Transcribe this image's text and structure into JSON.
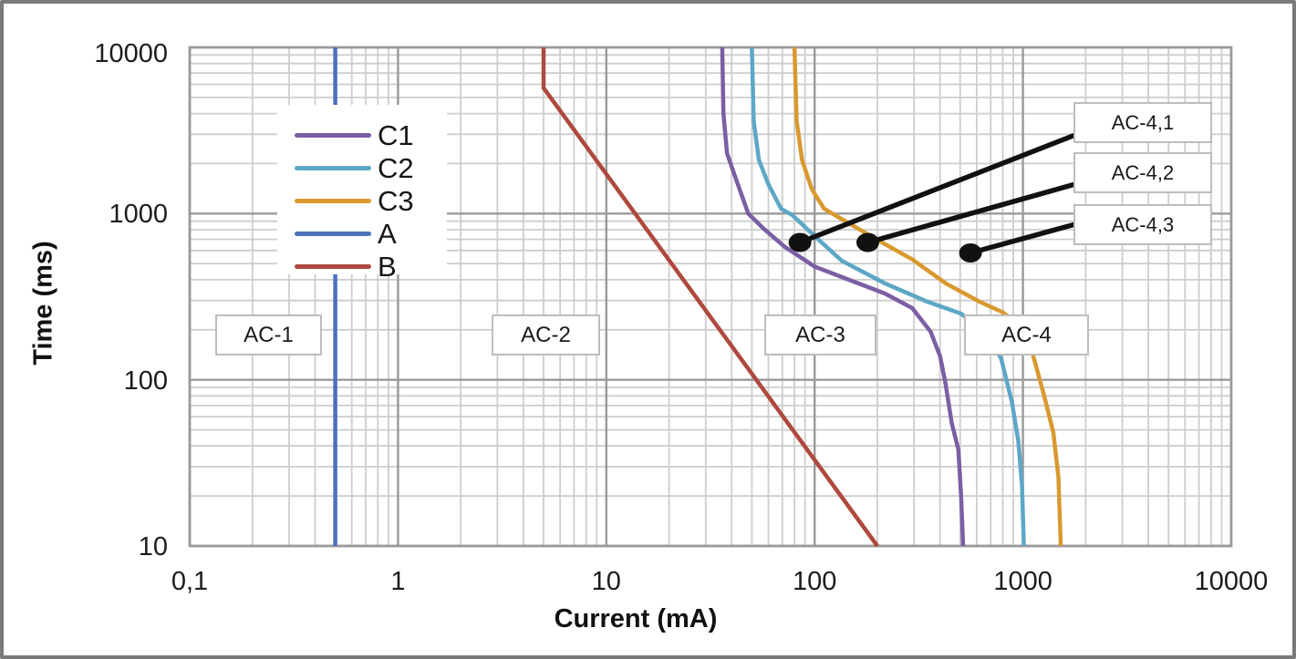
{
  "figure_type": "time-current zones log-log chart",
  "axes": {
    "x_title": "Current (mA)",
    "y_title": "Time (ms)",
    "x_tick_labels": [
      "0,1",
      "1",
      "10",
      "100",
      "1000",
      "10000"
    ],
    "x_tick_values": [
      0.1,
      1,
      10,
      100,
      1000,
      10000
    ],
    "y_tick_labels": [
      "10000",
      "1000",
      "100",
      "10"
    ],
    "y_tick_values": [
      10000,
      1000,
      100,
      10
    ]
  },
  "legend": {
    "items": [
      {
        "label": "C1",
        "color": "#7b5ea3"
      },
      {
        "label": "C2",
        "color": "#5da7c6"
      },
      {
        "label": "C3",
        "color": "#d9992f"
      },
      {
        "label": "A",
        "color": "#4c72b8"
      },
      {
        "label": "B",
        "color": "#af493d"
      }
    ]
  },
  "colors": {
    "grid_minor": "#cdcdcd",
    "grid_major": "#9a9a9a",
    "plot_border": "#9a9a9a",
    "marker": "#111111",
    "leader_line": "#111111",
    "box_border": "#bdbdbd"
  },
  "chart_data": {
    "type": "line",
    "title": "",
    "xlabel": "Current (mA)",
    "ylabel": "Time (ms)",
    "x_scale": "log",
    "y_scale": "log",
    "xlim": [
      0.1,
      10000
    ],
    "ylim": [
      10,
      10000
    ],
    "grid": true,
    "legend_position": "upper-left-inside",
    "series": [
      {
        "name": "C1",
        "color": "#7b5ea3",
        "points": [
          [
            36,
            10000
          ],
          [
            36.5,
            4000
          ],
          [
            38,
            2300
          ],
          [
            42,
            1600
          ],
          [
            48,
            1000
          ],
          [
            57,
            810
          ],
          [
            72,
            630
          ],
          [
            100,
            480
          ],
          [
            146,
            400
          ],
          [
            218,
            330
          ],
          [
            294,
            270
          ],
          [
            360,
            195
          ],
          [
            400,
            139
          ],
          [
            425,
            95
          ],
          [
            455,
            55
          ],
          [
            490,
            38
          ],
          [
            505,
            20
          ],
          [
            516,
            10
          ]
        ]
      },
      {
        "name": "C2",
        "color": "#5da7c6",
        "points": [
          [
            50,
            10000
          ],
          [
            51,
            3600
          ],
          [
            54,
            2100
          ],
          [
            60,
            1500
          ],
          [
            69,
            1070
          ],
          [
            78,
            980
          ],
          [
            108,
            670
          ],
          [
            135,
            520
          ],
          [
            218,
            380
          ],
          [
            348,
            295
          ],
          [
            505,
            250
          ],
          [
            650,
            195
          ],
          [
            785,
            135
          ],
          [
            886,
            73
          ],
          [
            950,
            43
          ],
          [
            990,
            23
          ],
          [
            1010,
            10
          ]
        ]
      },
      {
        "name": "C3",
        "color": "#d9992f",
        "points": [
          [
            80,
            10000
          ],
          [
            82,
            3600
          ],
          [
            87,
            2100
          ],
          [
            97,
            1400
          ],
          [
            111,
            1070
          ],
          [
            125,
            980
          ],
          [
            198,
            700
          ],
          [
            294,
            530
          ],
          [
            427,
            380
          ],
          [
            619,
            295
          ],
          [
            798,
            255
          ],
          [
            980,
            210
          ],
          [
            1110,
            145
          ],
          [
            1265,
            80
          ],
          [
            1400,
            48
          ],
          [
            1480,
            26
          ],
          [
            1520,
            10
          ]
        ]
      },
      {
        "name": "A",
        "color": "#4c72b8",
        "points": [
          [
            0.5,
            10000
          ],
          [
            0.5,
            10
          ]
        ]
      },
      {
        "name": "B",
        "color": "#af493d",
        "points": [
          [
            5,
            10000
          ],
          [
            5,
            5700
          ],
          [
            200,
            10
          ]
        ]
      }
    ],
    "zone_labels": [
      {
        "text": "AC-1",
        "current_mA": 0.24,
        "time_ms": 185
      },
      {
        "text": "AC-2",
        "current_mA": 5.1,
        "time_ms": 185
      },
      {
        "text": "AC-3",
        "current_mA": 107,
        "time_ms": 185
      },
      {
        "text": "AC-4",
        "current_mA": 1045,
        "time_ms": 185
      }
    ],
    "callouts": [
      {
        "text": "AC-4,1",
        "dot_current_mA": 85,
        "dot_time_ms": 670
      },
      {
        "text": "AC-4,2",
        "dot_current_mA": 180,
        "dot_time_ms": 670
      },
      {
        "text": "AC-4,3",
        "dot_current_mA": 560,
        "dot_time_ms": 580
      }
    ]
  }
}
